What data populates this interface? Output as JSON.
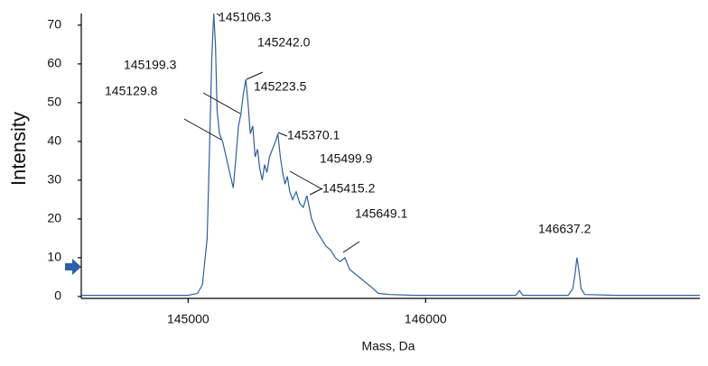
{
  "chart_data": {
    "type": "line",
    "xlabel": "Mass, Da",
    "ylabel": "Intensity",
    "xlim": [
      144550,
      147155
    ],
    "ylim": [
      -0.5,
      73
    ],
    "xticks": [
      145000,
      146000
    ],
    "yticks": [
      0,
      10,
      20,
      30,
      40,
      50,
      60,
      70
    ],
    "series": [
      {
        "name": "spectrum",
        "color": "#2f5f9e",
        "x": [
          144550,
          145000,
          145040,
          145060,
          145080,
          145090,
          145100,
          145108,
          145115,
          145122,
          145132,
          145145,
          145160,
          145175,
          145190,
          145200,
          145212,
          145222,
          145232,
          145243,
          145252,
          145262,
          145272,
          145282,
          145292,
          145302,
          145312,
          145322,
          145332,
          145342,
          145355,
          145368,
          145378,
          145388,
          145398,
          145408,
          145418,
          145428,
          145440,
          145455,
          145470,
          145485,
          145500,
          145520,
          145540,
          145560,
          145580,
          145600,
          145620,
          145640,
          145660,
          145680,
          145700,
          145720,
          145740,
          145760,
          145780,
          145800,
          145850,
          145950,
          146200,
          146380,
          146395,
          146410,
          146600,
          146620,
          146630,
          146637,
          146645,
          146655,
          146670,
          146800,
          147155
        ],
        "values": [
          0.3,
          0.3,
          0.8,
          3,
          15,
          38,
          62,
          73,
          65,
          48,
          42,
          40,
          36,
          32,
          28,
          35,
          44,
          47,
          52,
          56,
          50,
          42,
          44,
          36,
          38,
          33,
          30,
          34,
          32,
          36,
          38,
          40,
          42,
          36,
          32,
          29,
          31,
          27,
          25,
          27,
          24,
          23,
          26,
          20,
          17,
          15,
          13,
          12,
          10,
          9,
          10,
          7,
          6,
          5,
          4,
          3,
          2,
          0.8,
          0.5,
          0.3,
          0.3,
          0.3,
          1.5,
          0.3,
          0.3,
          2,
          6,
          10,
          7,
          2,
          0.5,
          0.3,
          0.3
        ]
      }
    ],
    "annotations": [
      "145106.3",
      "145242.0",
      "145199.3",
      "145223.5",
      "145129.8",
      "145370.1",
      "145499.9",
      "145415.2",
      "145649.1",
      "146637.2"
    ]
  }
}
